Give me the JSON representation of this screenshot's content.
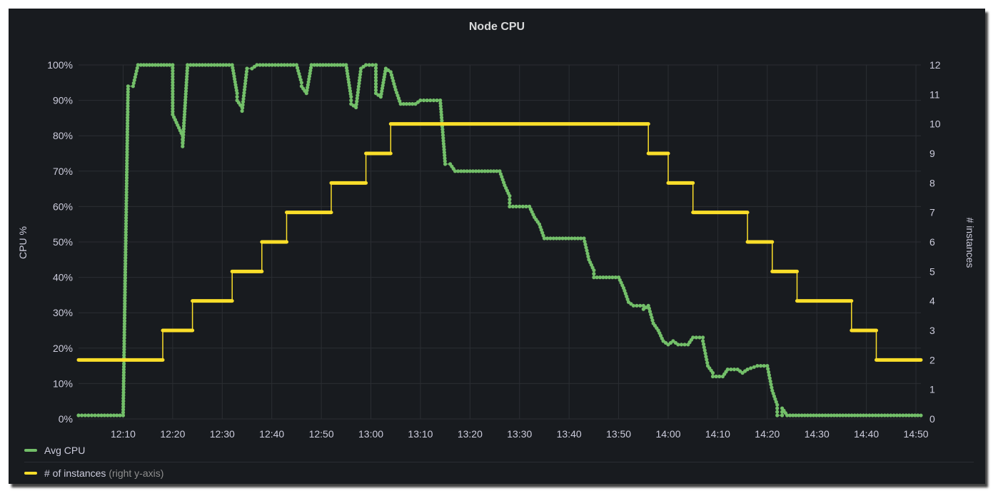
{
  "chart_data": {
    "type": "line",
    "title": "Node CPU",
    "x_ticks": [
      "12:10",
      "12:20",
      "12:30",
      "12:40",
      "12:50",
      "13:00",
      "13:10",
      "13:20",
      "13:30",
      "13:40",
      "13:50",
      "14:00",
      "14:10",
      "14:20",
      "14:30",
      "14:40",
      "14:50"
    ],
    "xlim": [
      "12:01",
      "14:51"
    ],
    "y_left": {
      "label": "CPU %",
      "ylim": [
        0,
        100
      ],
      "ticks": [
        "0%",
        "10%",
        "20%",
        "30%",
        "40%",
        "50%",
        "60%",
        "70%",
        "80%",
        "90%",
        "100%"
      ]
    },
    "y_right": {
      "label": "# instances",
      "ylim": [
        0,
        12
      ],
      "ticks": [
        "0",
        "1",
        "2",
        "3",
        "4",
        "5",
        "6",
        "7",
        "8",
        "9",
        "10",
        "11",
        "12"
      ]
    },
    "grid": true,
    "legend_position": "bottom-left",
    "series": [
      {
        "name": "Avg CPU",
        "axis": "left",
        "color": "#73bf69",
        "points": [
          [
            "12:01",
            1
          ],
          [
            "12:05",
            1
          ],
          [
            "12:10",
            1
          ],
          [
            "12:11",
            94
          ],
          [
            "12:12",
            94
          ],
          [
            "12:13",
            100
          ],
          [
            "12:20",
            100
          ],
          [
            "12:20",
            86
          ],
          [
            "12:21",
            83
          ],
          [
            "12:22",
            80
          ],
          [
            "12:22",
            77
          ],
          [
            "12:23",
            100
          ],
          [
            "12:32",
            100
          ],
          [
            "12:33",
            92
          ],
          [
            "12:33",
            90
          ],
          [
            "12:34",
            88
          ],
          [
            "12:34",
            87
          ],
          [
            "12:35",
            99
          ],
          [
            "12:36",
            99
          ],
          [
            "12:37",
            100
          ],
          [
            "12:45",
            100
          ],
          [
            "12:46",
            95
          ],
          [
            "12:46",
            94
          ],
          [
            "12:47",
            92
          ],
          [
            "12:48",
            100
          ],
          [
            "12:55",
            100
          ],
          [
            "12:56",
            91
          ],
          [
            "12:56",
            89
          ],
          [
            "12:57",
            88
          ],
          [
            "12:58",
            99
          ],
          [
            "12:59",
            100
          ],
          [
            "13:01",
            100
          ],
          [
            "13:01",
            92
          ],
          [
            "13:02",
            91
          ],
          [
            "13:03",
            99
          ],
          [
            "13:04",
            98
          ],
          [
            "13:05",
            93
          ],
          [
            "13:06",
            89
          ],
          [
            "13:09",
            89
          ],
          [
            "13:10",
            90
          ],
          [
            "13:14",
            90
          ],
          [
            "13:15",
            72
          ],
          [
            "13:16",
            72
          ],
          [
            "13:17",
            70
          ],
          [
            "13:26",
            70
          ],
          [
            "13:27",
            66
          ],
          [
            "13:28",
            63
          ],
          [
            "13:28",
            60
          ],
          [
            "13:32",
            60
          ],
          [
            "13:33",
            57
          ],
          [
            "13:34",
            55
          ],
          [
            "13:35",
            51
          ],
          [
            "13:43",
            51
          ],
          [
            "13:44",
            45
          ],
          [
            "13:45",
            42
          ],
          [
            "13:45",
            40
          ],
          [
            "13:50",
            40
          ],
          [
            "13:51",
            37
          ],
          [
            "13:52",
            33
          ],
          [
            "13:53",
            32
          ],
          [
            "13:55",
            32
          ],
          [
            "13:55",
            31
          ],
          [
            "13:56",
            32
          ],
          [
            "13:57",
            27
          ],
          [
            "13:58",
            25
          ],
          [
            "13:59",
            22
          ],
          [
            "13:60",
            21
          ],
          [
            "14:01",
            22
          ],
          [
            "14:02",
            21
          ],
          [
            "14:04",
            21
          ],
          [
            "14:05",
            23
          ],
          [
            "14:07",
            23
          ],
          [
            "14:07",
            22
          ],
          [
            "14:08",
            15
          ],
          [
            "14:09",
            13
          ],
          [
            "14:09",
            12
          ],
          [
            "14:11",
            12
          ],
          [
            "14:12",
            14
          ],
          [
            "14:14",
            14
          ],
          [
            "14:15",
            13
          ],
          [
            "14:16",
            14
          ],
          [
            "14:18",
            15
          ],
          [
            "14:20",
            15
          ],
          [
            "14:21",
            8
          ],
          [
            "14:22",
            4
          ],
          [
            "14:22",
            1
          ],
          [
            "14:23",
            1
          ],
          [
            "14:23",
            3
          ],
          [
            "14:24",
            1
          ],
          [
            "14:40",
            1
          ],
          [
            "14:48",
            1
          ],
          [
            "14:51",
            1
          ]
        ]
      },
      {
        "name": "# of instances",
        "name_note": "(right y-axis)",
        "axis": "right",
        "color": "#fade2a",
        "points": [
          [
            "12:01",
            2
          ],
          [
            "12:18",
            2
          ],
          [
            "12:18",
            3
          ],
          [
            "12:24",
            3
          ],
          [
            "12:24",
            4
          ],
          [
            "12:32",
            4
          ],
          [
            "12:32",
            5
          ],
          [
            "12:38",
            5
          ],
          [
            "12:38",
            6
          ],
          [
            "12:43",
            6
          ],
          [
            "12:43",
            7
          ],
          [
            "12:52",
            7
          ],
          [
            "12:52",
            8
          ],
          [
            "12:59",
            8
          ],
          [
            "12:59",
            9
          ],
          [
            "13:04",
            9
          ],
          [
            "13:04",
            10
          ],
          [
            "13:56",
            10
          ],
          [
            "13:56",
            9
          ],
          [
            "14:00",
            9
          ],
          [
            "14:00",
            8
          ],
          [
            "14:05",
            8
          ],
          [
            "14:05",
            7
          ],
          [
            "14:16",
            7
          ],
          [
            "14:16",
            6
          ],
          [
            "14:21",
            6
          ],
          [
            "14:21",
            5
          ],
          [
            "14:26",
            5
          ],
          [
            "14:26",
            4
          ],
          [
            "14:37",
            4
          ],
          [
            "14:37",
            3
          ],
          [
            "14:42",
            3
          ],
          [
            "14:42",
            2
          ],
          [
            "14:51",
            2
          ]
        ]
      }
    ]
  }
}
